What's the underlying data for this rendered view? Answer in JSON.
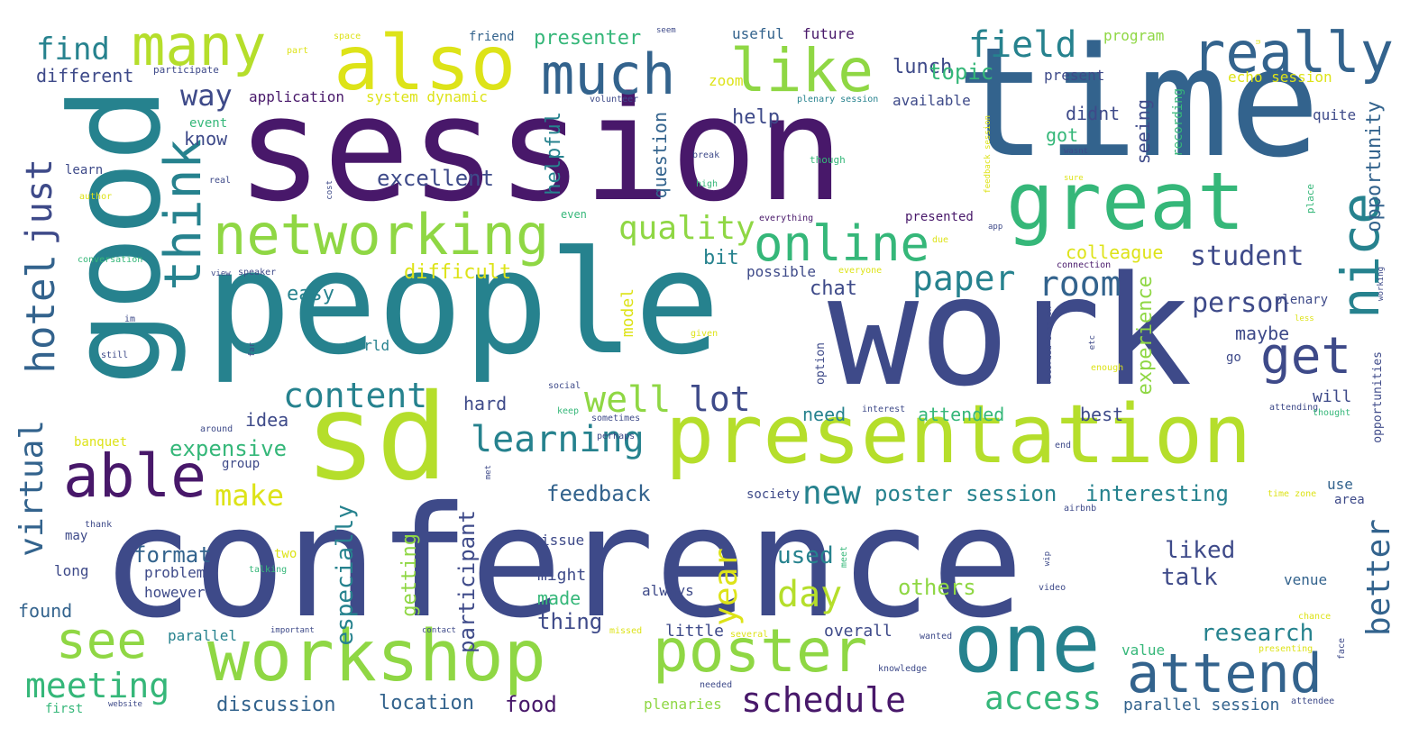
{
  "colors": {
    "dark_purple": "#48186a",
    "indigo": "#3e4a89",
    "slate": "#33638d",
    "teal": "#26828e",
    "green": "#35b779",
    "lime": "#8fd744",
    "yellow_green": "#b5de2b",
    "yellow": "#dde318"
  },
  "words": {
    "session": "session",
    "people": "people",
    "conference": "conference",
    "time": "time",
    "work": "work",
    "good": "good",
    "sd": "sd",
    "presentation": "presentation",
    "workshop": "workshop",
    "great": "great",
    "also": "also",
    "one": "one",
    "networking": "networking",
    "poster": "poster",
    "many": "many",
    "much": "much",
    "like": "like",
    "really": "really",
    "online": "online",
    "think": "think",
    "nice": "nice",
    "attend": "attend",
    "able": "able",
    "see": "see",
    "get": "get",
    "hotel": "hotel",
    "virtual": "virtual",
    "just": "just",
    "field": "field",
    "find": "find",
    "learning": "learning",
    "content": "content",
    "schedule": "schedule",
    "well": "well",
    "meeting": "meeting",
    "day": "day",
    "access": "access",
    "paper": "paper",
    "room": "room",
    "quality": "quality",
    "lot": "lot",
    "make": "make",
    "new": "new",
    "year": "year",
    "better": "better",
    "way": "way",
    "student": "student",
    "person": "person",
    "excellent": "excellent",
    "presenter": "presenter",
    "lunch": "lunch",
    "topic": "topic",
    "expensive": "expensive",
    "interesting": "interesting",
    "poster_session": "poster session",
    "feedback": "feedback",
    "discussion": "discussion",
    "location": "location",
    "food": "food",
    "research": "research",
    "others": "others",
    "liked": "liked",
    "talk": "talk",
    "used": "used",
    "format": "format",
    "thing": "thing",
    "especially": "especially",
    "participant": "participant",
    "getting": "getting",
    "experience": "experience",
    "opportunity": "opportunity",
    "colleague": "colleague",
    "difficult": "difficult",
    "easy": "easy",
    "chat": "chat",
    "bit": "bit",
    "help": "help",
    "helpful": "helpful",
    "question": "question",
    "got": "got",
    "didnt": "didnt",
    "seeing": "seeing",
    "know": "know",
    "idea": "idea",
    "need": "need",
    "attended": "attended",
    "best": "best",
    "hard": "hard",
    "maybe": "maybe",
    "will": "will",
    "found": "found",
    "different": "different",
    "application": "application",
    "system_dynamic": "system dynamic",
    "zoom": "zoom",
    "friend": "friend",
    "useful": "useful",
    "future": "future",
    "available": "available",
    "program": "program",
    "echo_session": "echo session",
    "present": "present",
    "quite": "quite",
    "model": "model",
    "possible": "possible",
    "presented": "presented",
    "made": "made",
    "might": "might",
    "issue": "issue",
    "always": "always",
    "little": "little",
    "overall": "overall",
    "plenaries": "plenaries",
    "parallel_session": "parallel session",
    "value": "value",
    "venue": "venue",
    "use": "use",
    "area": "area",
    "society": "society",
    "problem": "problem",
    "however": "however",
    "long": "long",
    "parallel": "parallel",
    "two": "two",
    "banquet": "banquet",
    "group": "group",
    "learn": "learn",
    "event": "event",
    "world": "world",
    "plenary": "plenary",
    "go": "go",
    "recording": "recording",
    "may": "may",
    "first": "first",
    "part": "part",
    "participate": "participate",
    "space": "space",
    "seem": "seem",
    "volunteer": "volunteer",
    "plenary_session": "plenary session",
    "feedback_session": "feedback session",
    "though": "though",
    "wasnt": "wasnt",
    "sure": "sure",
    "break": "break",
    "high": "high",
    "real": "real",
    "cost": "cost",
    "author": "author",
    "everything": "everything",
    "due": "due",
    "app": "app",
    "conversation": "conversation",
    "view": "view",
    "speaker": "speaker",
    "everyone": "everyone",
    "connection": "connection",
    "place": "place",
    "working": "working",
    "im": "im",
    "still": "still",
    "far": "far",
    "given": "given",
    "recorded_session": "recorded session",
    "etc": "etc",
    "less": "less",
    "enough": "enough",
    "option": "option",
    "opportunities": "opportunities",
    "social": "social",
    "keep": "keep",
    "interest": "interest",
    "sometimes": "sometimes",
    "attending": "attending",
    "thought": "thought",
    "around": "around",
    "perhaps": "perhaps",
    "met": "met",
    "end": "end",
    "time_zone": "time zone",
    "airbnb": "airbnb",
    "thank": "thank",
    "meet": "meet",
    "wip": "wip",
    "video": "video",
    "chance": "chance",
    "talking": "talking",
    "important": "important",
    "contact": "contact",
    "missed": "missed",
    "several": "several",
    "wanted": "wanted",
    "presenting": "presenting",
    "face": "face",
    "knowledge": "knowledge",
    "needed": "needed",
    "website": "website",
    "attendee": "attendee",
    "even": "even",
    "real_u": "u"
  }
}
